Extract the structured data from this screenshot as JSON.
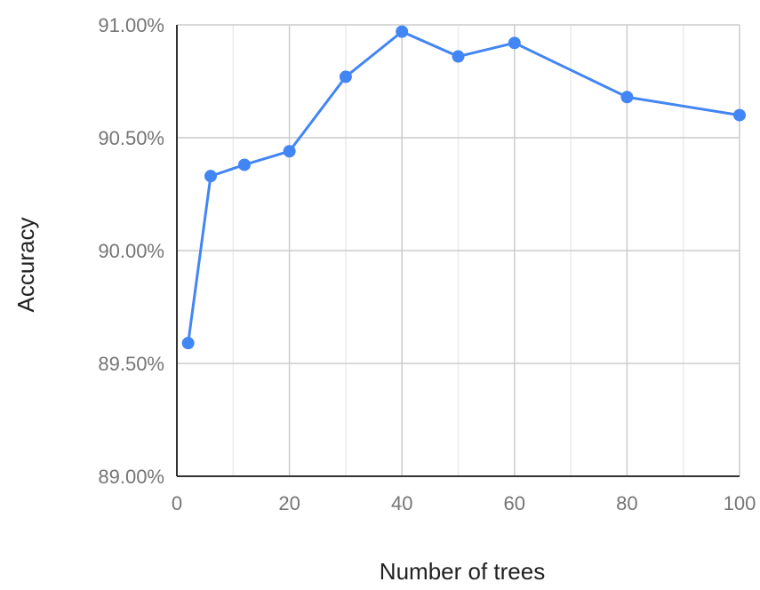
{
  "chart_data": {
    "type": "line",
    "title": "",
    "xlabel": "Number of trees",
    "ylabel": "Accuracy",
    "xlim": [
      0,
      100
    ],
    "ylim": [
      89.0,
      91.0
    ],
    "x_ticks": [
      0,
      20,
      40,
      60,
      80,
      100
    ],
    "x_tick_labels": [
      "0",
      "20",
      "40",
      "60",
      "80",
      "100"
    ],
    "y_ticks": [
      89.0,
      89.5,
      90.0,
      90.5,
      91.0
    ],
    "y_tick_labels": [
      "89.00%",
      "89.50%",
      "90.00%",
      "90.50%",
      "91.00%"
    ],
    "x_minor_grid": [
      10,
      30,
      50,
      70,
      90
    ],
    "grid": true,
    "legend": "none",
    "series": [
      {
        "color": "#4285f4",
        "x": [
          2,
          6,
          12,
          20,
          30,
          40,
          50,
          60,
          80,
          100
        ],
        "y": [
          89.59,
          90.33,
          90.38,
          90.44,
          90.77,
          90.97,
          90.86,
          90.92,
          90.68,
          90.6
        ]
      }
    ]
  }
}
